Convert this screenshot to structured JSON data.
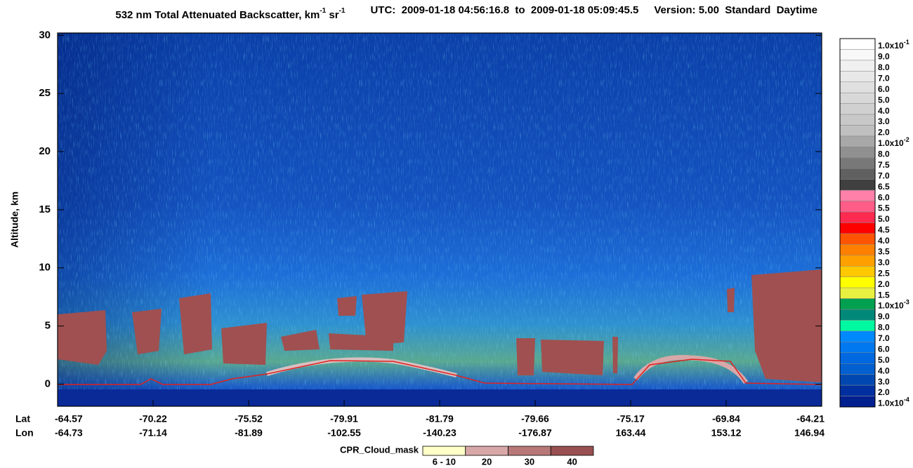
{
  "chart_data": {
    "type": "curtain",
    "title": [
      {
        "text": "532 nm Total Attenuated Backscatter, km"
      },
      {
        "sup": "-1"
      },
      {
        "text": " sr"
      },
      {
        "sup": "-1"
      }
    ],
    "utc": "UTC:  2009-01-18 04:56:16.8  to  2009-01-18 05:09:45.5",
    "version": "Version: 5.00  Standard  Daytime",
    "y_label": "Altitude, km",
    "ylim": [
      -1.9,
      30.2
    ],
    "yticks": [
      0,
      5,
      10,
      15,
      20,
      25,
      30
    ],
    "lat_label": "Lat",
    "lon_label": "Lon",
    "lat": [
      -64.57,
      -70.22,
      -75.52,
      -79.91,
      -81.79,
      -79.66,
      -75.17,
      -69.84,
      -64.21
    ],
    "lon": [
      -64.73,
      -71.14,
      -81.89,
      -102.55,
      -140.23,
      -176.87,
      163.44,
      153.12,
      146.94
    ],
    "colorbar": [
      {
        "label": "1.0x10",
        "exp": "-1",
        "color": "#ffffff"
      },
      {
        "label": "9.0",
        "color": "#f8f8f8"
      },
      {
        "label": "8.0",
        "color": "#f0f0f0"
      },
      {
        "label": "7.0",
        "color": "#e8e8e8"
      },
      {
        "label": "6.0",
        "color": "#e0e0e0"
      },
      {
        "label": "5.0",
        "color": "#d8d8d8"
      },
      {
        "label": "4.0",
        "color": "#d0d0d0"
      },
      {
        "label": "3.0",
        "color": "#c8c8c8"
      },
      {
        "label": "2.0",
        "color": "#c0c0c0"
      },
      {
        "label": "1.0x10",
        "exp": "-2",
        "color": "#a8a8a8"
      },
      {
        "label": "8.0",
        "color": "#909090"
      },
      {
        "label": "7.5",
        "color": "#787878"
      },
      {
        "label": "7.0",
        "color": "#606060"
      },
      {
        "label": "6.5",
        "color": "#404040"
      },
      {
        "label": "6.0",
        "color": "#ff80a8"
      },
      {
        "label": "5.5",
        "color": "#ff5c88"
      },
      {
        "label": "5.0",
        "color": "#ff2a50"
      },
      {
        "label": "4.5",
        "color": "#ff0000"
      },
      {
        "label": "4.0",
        "color": "#ff5400"
      },
      {
        "label": "3.5",
        "color": "#ff8000"
      },
      {
        "label": "3.0",
        "color": "#ffa000"
      },
      {
        "label": "2.5",
        "color": "#ffc800"
      },
      {
        "label": "2.0",
        "color": "#ffff00"
      },
      {
        "label": "1.5",
        "color": "#e8f040"
      },
      {
        "label": "1.0x10",
        "exp": "-3",
        "color": "#00a050"
      },
      {
        "label": "9.0",
        "color": "#008878"
      },
      {
        "label": "8.0",
        "color": "#00f8a0"
      },
      {
        "label": "7.0",
        "color": "#0088ff"
      },
      {
        "label": "6.0",
        "color": "#0078f0"
      },
      {
        "label": "5.0",
        "color": "#0068e0"
      },
      {
        "label": "4.0",
        "color": "#0060d0"
      },
      {
        "label": "3.0",
        "color": "#0048b0"
      },
      {
        "label": "2.0",
        "color": "#0030a0"
      },
      {
        "label": "1.0x10",
        "exp": "-4",
        "color": "#002090"
      }
    ],
    "cloud_mask": {
      "name": "CPR_Cloud_mask",
      "entries": [
        {
          "label": "6 - 10",
          "color": "#ffffc8"
        },
        {
          "label": "20",
          "color": "#d8a8a8"
        },
        {
          "label": "30",
          "color": "#b87878"
        },
        {
          "label": "40",
          "color": "#985050"
        }
      ]
    }
  }
}
